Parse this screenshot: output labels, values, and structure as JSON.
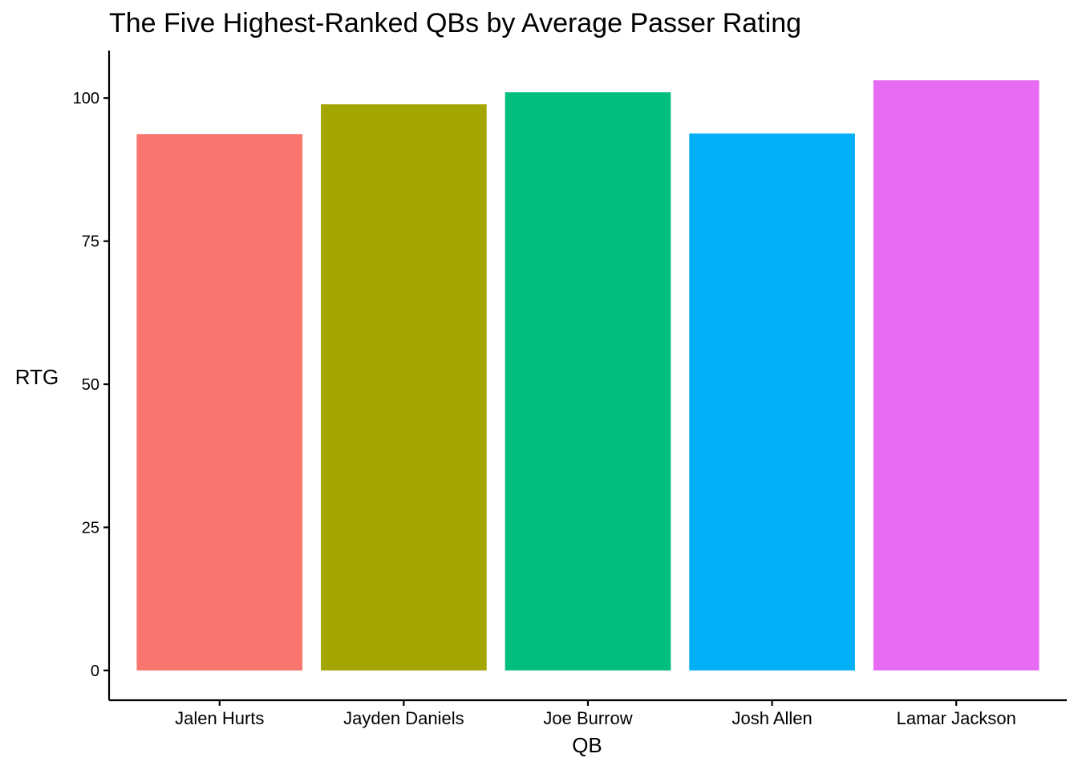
{
  "chart_data": {
    "type": "bar",
    "title": "The Five Highest-Ranked QBs by Average Passer Rating",
    "xlabel": "QB",
    "ylabel": "RTG",
    "categories": [
      "Jalen Hurts",
      "Jayden Daniels",
      "Joe Burrow",
      "Josh Allen",
      "Lamar Jackson"
    ],
    "values": [
      93.7,
      98.9,
      101.0,
      93.8,
      103.1
    ],
    "colors": [
      "#F8766D",
      "#A3A500",
      "#00BF7D",
      "#00B0F6",
      "#E76BF3"
    ],
    "yticks": [
      0,
      25,
      50,
      75,
      100
    ],
    "ylim": [
      -5.2,
      108.3
    ],
    "grid": false,
    "legend": "none"
  }
}
